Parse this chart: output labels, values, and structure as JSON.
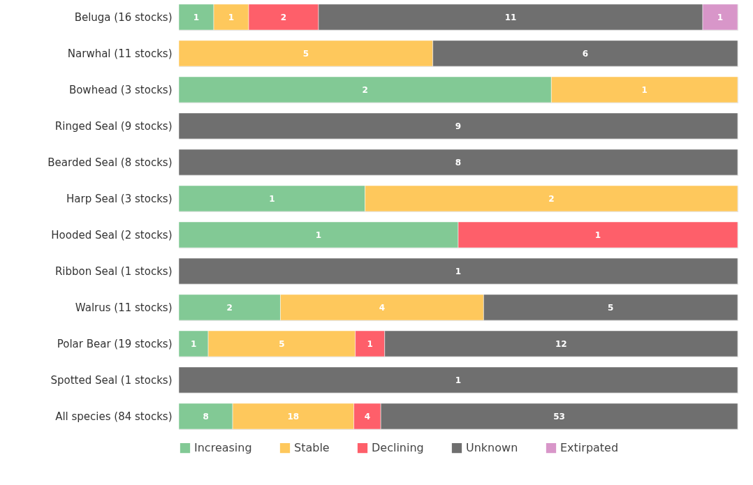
{
  "chart_data": [
    {
      "type": "bar",
      "orientation": "horizontal",
      "stacked": true,
      "data_labels": true,
      "categories": [
        "Beluga (16 stocks)"
      ],
      "series": [
        {
          "color": "#82c995",
          "values": [
            1
          ]
        },
        {
          "color": "#fec85c",
          "values": [
            1
          ]
        },
        {
          "color": "#fe5f6a",
          "values": [
            2
          ]
        },
        {
          "color": "#6f6f6f",
          "values": [
            11
          ]
        },
        {
          "color": "#d896c9",
          "values": [
            1
          ]
        }
      ]
    },
    {
      "type": "bar",
      "orientation": "horizontal",
      "stacked": true,
      "data_labels": true,
      "categories": [
        "Narwhal (11 stocks)"
      ],
      "series": [
        {
          "color": "#fec85c",
          "values": [
            5
          ]
        },
        {
          "color": "#6f6f6f",
          "values": [
            6
          ]
        }
      ]
    },
    {
      "type": "bar",
      "orientation": "horizontal",
      "stacked": true,
      "data_labels": true,
      "categories": [
        "Bowhead (3 stocks)"
      ],
      "series": [
        {
          "color": "#82c995",
          "values": [
            2
          ]
        },
        {
          "color": "#fec85c",
          "values": [
            1
          ]
        }
      ]
    },
    {
      "type": "bar",
      "orientation": "horizontal",
      "stacked": true,
      "data_labels": true,
      "categories": [
        "Ringed Seal (9 stocks)"
      ],
      "series": [
        {
          "color": "#6f6f6f",
          "values": [
            9
          ]
        }
      ]
    },
    {
      "type": "bar",
      "orientation": "horizontal",
      "stacked": true,
      "data_labels": true,
      "categories": [
        "Bearded Seal (8 stocks)"
      ],
      "series": [
        {
          "color": "#6f6f6f",
          "values": [
            8
          ]
        }
      ]
    },
    {
      "type": "bar",
      "orientation": "horizontal",
      "stacked": true,
      "data_labels": true,
      "categories": [
        "Harp Seal (3 stocks)"
      ],
      "series": [
        {
          "color": "#82c995",
          "values": [
            1
          ]
        },
        {
          "color": "#fec85c",
          "values": [
            2
          ]
        }
      ]
    },
    {
      "type": "bar",
      "orientation": "horizontal",
      "stacked": true,
      "data_labels": true,
      "categories": [
        "Hooded Seal (2 stocks)"
      ],
      "series": [
        {
          "color": "#82c995",
          "values": [
            1
          ]
        },
        {
          "color": "#fe5f6a",
          "values": [
            1
          ]
        }
      ]
    },
    {
      "type": "bar",
      "orientation": "horizontal",
      "stacked": true,
      "data_labels": true,
      "categories": [
        "Ribbon Seal (1 stocks)"
      ],
      "series": [
        {
          "color": "#6f6f6f",
          "values": [
            1
          ]
        }
      ]
    },
    {
      "type": "bar",
      "orientation": "horizontal",
      "stacked": true,
      "data_labels": true,
      "categories": [
        "Walrus (11 stocks)"
      ],
      "series": [
        {
          "color": "#82c995",
          "values": [
            2
          ]
        },
        {
          "color": "#fec85c",
          "values": [
            4
          ]
        },
        {
          "color": "#6f6f6f",
          "values": [
            5
          ]
        }
      ]
    },
    {
      "type": "bar",
      "orientation": "horizontal",
      "stacked": true,
      "data_labels": true,
      "categories": [
        "Polar Bear (19 stocks)"
      ],
      "series": [
        {
          "color": "#82c995",
          "values": [
            1
          ]
        },
        {
          "color": "#fec85c",
          "values": [
            5
          ]
        },
        {
          "color": "#fe5f6a",
          "values": [
            1
          ]
        },
        {
          "color": "#6f6f6f",
          "values": [
            12
          ]
        }
      ]
    },
    {
      "type": "bar",
      "orientation": "horizontal",
      "stacked": true,
      "data_labels": true,
      "categories": [
        "Spotted Seal (1 stocks)"
      ],
      "series": [
        {
          "color": "#6f6f6f",
          "values": [
            1
          ]
        }
      ]
    },
    {
      "type": "bar",
      "orientation": "horizontal",
      "stacked": true,
      "data_labels": true,
      "categories": [
        "All species (84 stocks)"
      ],
      "legend": "bottom",
      "series": [
        {
          "name": "Increasing",
          "color": "#82c995",
          "values": [
            8
          ]
        },
        {
          "name": "Stable",
          "color": "#fec85c",
          "values": [
            18
          ]
        },
        {
          "name": "Declining",
          "color": "#fe5f6a",
          "values": [
            4
          ]
        },
        {
          "name": "Unknown",
          "color": "#6f6f6f",
          "values": [
            53
          ]
        },
        {
          "name": "Extirpated",
          "color": "#d896c9",
          "values": [
            null
          ]
        }
      ]
    }
  ]
}
